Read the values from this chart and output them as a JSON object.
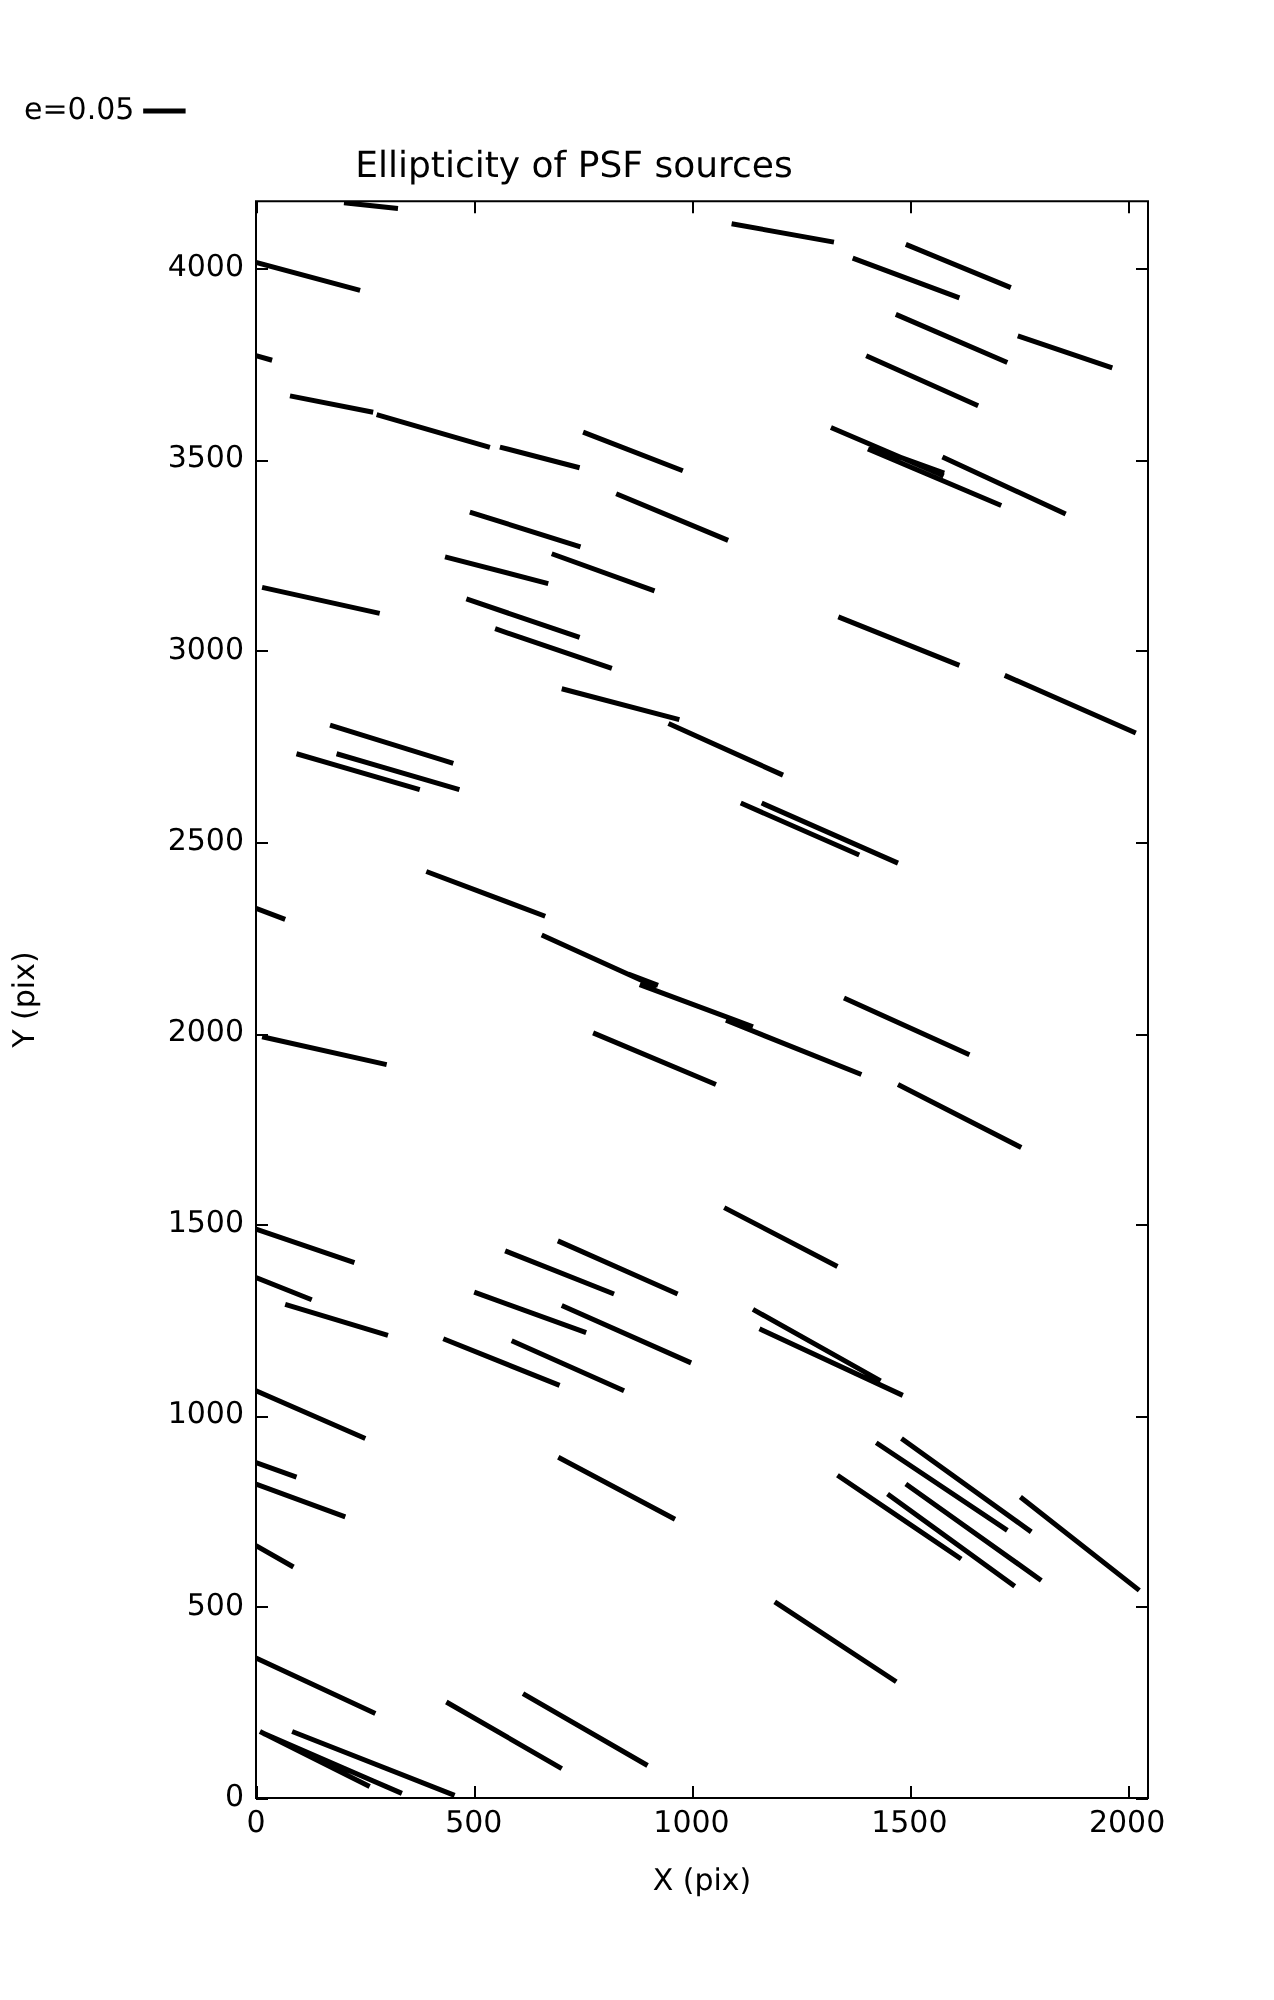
{
  "chart_data": {
    "type": "line",
    "title": "Ellipticity of PSF sources",
    "xlabel": "X (pix)",
    "ylabel": "Y (pix)",
    "xlim": [
      0,
      2048
    ],
    "ylim": [
      0,
      4176
    ],
    "xticks": [
      0,
      500,
      1000,
      1500,
      2000
    ],
    "yticks": [
      0,
      500,
      1000,
      1500,
      2000,
      2500,
      3000,
      3500,
      4000
    ],
    "grid": false,
    "legend": "top left",
    "marker": "none",
    "line_style": "solid",
    "series": [
      {
        "name": "e=0.05",
        "color": "#000000",
        "x": [
          202,
          326,
          null,
          0,
          239,
          null,
          0,
          37,
          null,
          78,
          269,
          null,
          277,
          537,
          null,
          560,
          743,
          null,
          751,
          980,
          null,
          827,
          1084,
          null,
          1092,
          1327,
          null,
          1370,
          1615,
          null,
          1492,
          1733,
          null,
          1469,
          1725,
          null,
          1749,
          1966,
          null,
          1401,
          1658,
          null,
          1320,
          1579,
          null,
          1405,
          1711,
          null,
          1410,
          1580,
          null,
          1576,
          1859,
          null,
          491,
          745,
          null,
          434,
          671,
          null,
          679,
          915,
          null,
          14,
          284,
          null,
          483,
          743,
          null,
          549,
          817,
          null,
          702,
          972,
          null,
          1337,
          1615,
          null,
          1719,
          2020,
          null,
          170,
          453,
          null,
          947,
          1210,
          null,
          93,
          376,
          null,
          185,
          467,
          null,
          1113,
          1385,
          null,
          1161,
          1474,
          null,
          391,
          664,
          null,
          0,
          67,
          null,
          656,
          919,
          null,
          855,
          923,
          null,
          881,
          1141,
          null,
          1079,
          1390,
          null,
          1350,
          1638,
          null,
          14,
          300,
          null,
          774,
          1056,
          null,
          1474,
          1757,
          null,
          0,
          226,
          null,
          1075,
          1335,
          null,
          572,
          822,
          null,
          693,
          968,
          null,
          0,
          128,
          null,
          67,
          303,
          null,
          501,
          758,
          null,
          702,
          999,
          null,
          1141,
          1434,
          null,
          1156,
          1485,
          null,
          430,
          697,
          null,
          587,
          845,
          null,
          0,
          251,
          null,
          0,
          93,
          null,
          0,
          205,
          null,
          0,
          86,
          null,
          694,
          962,
          null,
          1424,
          1725,
          null,
          1482,
          1780,
          null,
          1335,
          1619,
          null,
          1450,
          1742,
          null,
          1492,
          1803,
          null,
          1755,
          2028,
          null,
          1191,
          1470,
          null,
          0,
          274,
          null,
          437,
          702,
          null,
          613,
          899,
          null,
          9,
          261,
          null,
          17,
          335,
          null,
          83,
          456
        ],
        "values": [
          4172,
          4157,
          null,
          4016,
          3943,
          null,
          3772,
          3760,
          null,
          3667,
          3624,
          null,
          3618,
          3532,
          null,
          3533,
          3479,
          null,
          3572,
          3471,
          null,
          3411,
          3289,
          null,
          4117,
          4069,
          null,
          4027,
          3923,
          null,
          4063,
          3950,
          null,
          3880,
          3754,
          null,
          3824,
          3740,
          null,
          3772,
          3641,
          null,
          3584,
          3458,
          null,
          3528,
          3380,
          null,
          3535,
          3465,
          null,
          3507,
          3358,
          null,
          3363,
          3272,
          null,
          3246,
          3176,
          null,
          3254,
          3157,
          null,
          3166,
          3098,
          null,
          3136,
          3035,
          null,
          3058,
          2954,
          null,
          2901,
          2820,
          null,
          3089,
          2962,
          null,
          2936,
          2785,
          null,
          2806,
          2706,
          null,
          2810,
          2675,
          null,
          2731,
          2637,
          null,
          2731,
          2637,
          null,
          2602,
          2466,
          null,
          2602,
          2445,
          null,
          2423,
          2306,
          null,
          2327,
          2298,
          null,
          2257,
          2121,
          null,
          2155,
          2125,
          null,
          2127,
          2017,
          null,
          2034,
          1892,
          null,
          2092,
          1944,
          null,
          1991,
          1918,
          null,
          2001,
          1866,
          null,
          1866,
          1701,
          null,
          1488,
          1400,
          null,
          1544,
          1390,
          null,
          1431,
          1318,
          null,
          1457,
          1318,
          null,
          1361,
          1303,
          null,
          1291,
          1210,
          null,
          1323,
          1217,
          null,
          1288,
          1138,
          null,
          1278,
          1091,
          null,
          1227,
          1053,
          null,
          1201,
          1079,
          null,
          1196,
          1065,
          null,
          1065,
          940,
          null,
          877,
          839,
          null,
          821,
          735,
          null,
          660,
          604,
          null,
          891,
          729,
          null,
          929,
          700,
          null,
          940,
          696,
          null,
          844,
          625,
          null,
          795,
          554,
          null,
          821,
          569,
          null,
          787,
          543,
          null,
          513,
          304,
          null,
          366,
          221,
          null,
          251,
          77,
          null,
          273,
          85,
          null,
          174,
          30,
          null,
          169,
          12,
          null,
          174,
          7
        ]
      }
    ]
  }
}
